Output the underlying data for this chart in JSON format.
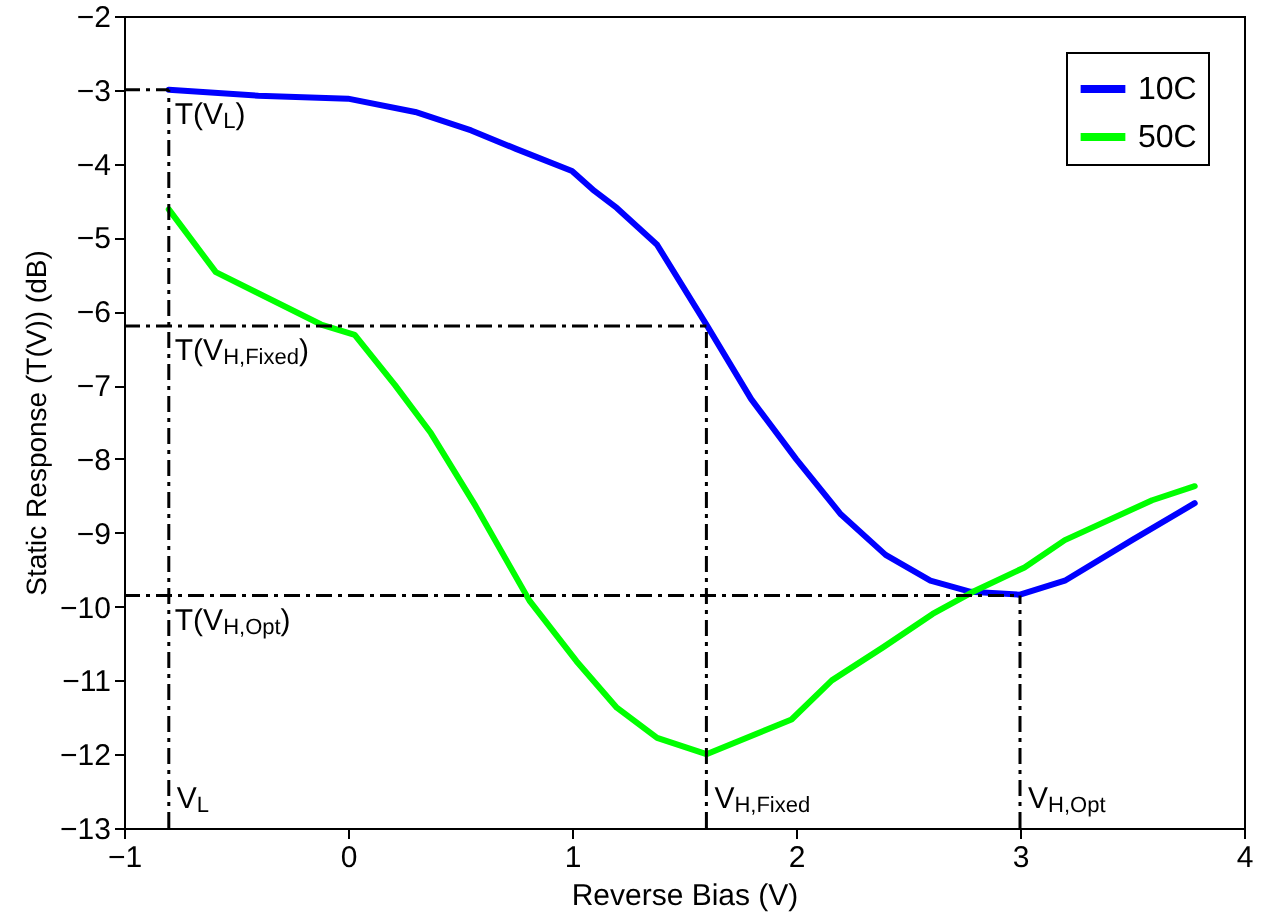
{
  "chart_data": {
    "type": "line",
    "xlabel": "Reverse Bias (V)",
    "ylabel": "Static Response (T(V)) (dB)",
    "xlim": [
      -1,
      4
    ],
    "ylim": [
      -13,
      -2
    ],
    "xticks": [
      -1,
      0,
      1,
      2,
      3,
      4
    ],
    "yticks": [
      -13,
      -12,
      -11,
      -10,
      -9,
      -8,
      -7,
      -6,
      -5,
      -4,
      -3,
      -2
    ],
    "grid": false,
    "legend": "top right",
    "line_style": "solid",
    "series": [
      {
        "name": "10C",
        "color": "#0000ff",
        "x": [
          -0.8,
          -0.4,
          0,
          0.3,
          0.55,
          0.75,
          1.0,
          1.1,
          1.2,
          1.38,
          1.6,
          1.8,
          2.0,
          2.2,
          2.4,
          2.6,
          2.78,
          3.0,
          3.2,
          3.5,
          3.78
        ],
        "values": [
          -3.0,
          -3.08,
          -3.12,
          -3.3,
          -3.55,
          -3.8,
          -4.1,
          -4.37,
          -4.6,
          -5.1,
          -6.18,
          -7.19,
          -8.0,
          -8.75,
          -9.3,
          -9.65,
          -9.8,
          -9.84,
          -9.65,
          -9.1,
          -8.6
        ]
      },
      {
        "name": "50C",
        "color": "#00ff00",
        "x": [
          -0.8,
          -0.59,
          -0.12,
          0.03,
          0.21,
          0.37,
          0.57,
          0.81,
          1.02,
          1.2,
          1.38,
          1.6,
          1.98,
          2.16,
          2.39,
          2.61,
          2.79,
          3.02,
          3.2,
          3.59,
          3.78
        ],
        "values": [
          -4.62,
          -5.47,
          -6.18,
          -6.32,
          -7.0,
          -7.65,
          -8.64,
          -9.92,
          -10.74,
          -11.37,
          -11.78,
          -12.0,
          -11.53,
          -11.0,
          -10.55,
          -10.1,
          -9.8,
          -9.47,
          -9.1,
          -8.56,
          -8.37
        ]
      }
    ],
    "ref_lines": [
      {
        "axis": "y",
        "value": -3.0,
        "label": "T(V$_{L}$)",
        "color": "#000000",
        "line_style": "dashed"
      },
      {
        "axis": "y",
        "value": -6.2,
        "label": "T(V$_{H,Fixed}$)",
        "color": "#000000",
        "line_style": "dashed"
      },
      {
        "axis": "y",
        "value": -9.85,
        "label": "T(V$_{H,Opt}$)",
        "color": "#000000",
        "line_style": "dashed"
      },
      {
        "axis": "x",
        "value": -0.8,
        "label": "V$_{L}$",
        "color": "#000000",
        "line_style": "dashed"
      },
      {
        "axis": "x",
        "value": 1.6,
        "label": "V$_{H,Fixed}$",
        "color": "#000000",
        "line_style": "dashed"
      },
      {
        "axis": "x",
        "value": 3.0,
        "label": "V$_{H,Opt}$",
        "color": "#000000",
        "line_style": "dashed"
      }
    ]
  }
}
